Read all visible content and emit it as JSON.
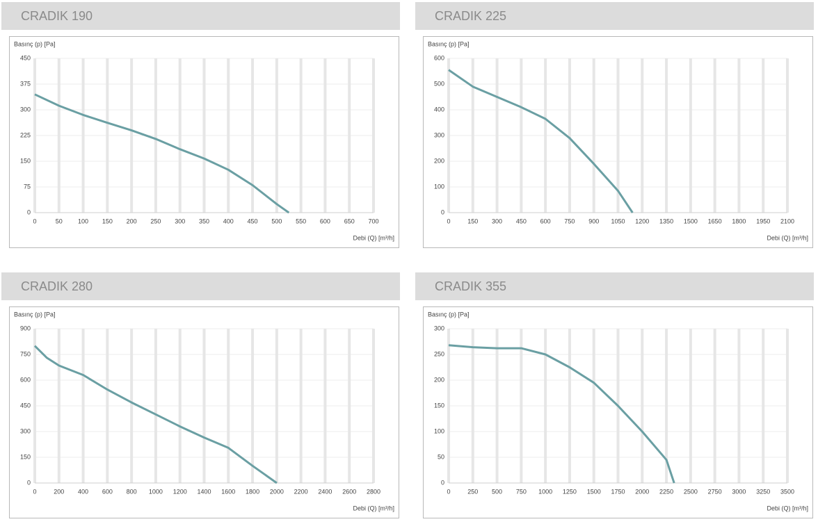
{
  "chart_data": [
    {
      "type": "line",
      "title": "CRADIK 190",
      "y_label": "Basınç (p) [Pa]",
      "x_label": "Debi (Q) [m³/h]",
      "x": [
        0,
        50,
        100,
        150,
        200,
        250,
        300,
        350,
        400,
        450,
        500,
        525
      ],
      "values": [
        345,
        312,
        285,
        262,
        240,
        215,
        185,
        158,
        125,
        80,
        25,
        0
      ],
      "color": "#6a9fa3",
      "xlim": [
        0,
        700
      ],
      "ylim": [
        0,
        450
      ],
      "xticks": [
        0,
        50,
        100,
        150,
        200,
        250,
        300,
        350,
        400,
        450,
        500,
        550,
        600,
        650,
        700
      ],
      "yticks": [
        0,
        75,
        150,
        225,
        300,
        375,
        450
      ],
      "grid": true
    },
    {
      "type": "line",
      "title": "CRADIK 225",
      "y_label": "Basınç (p) [Pa]",
      "x_label": "Debi (Q) [m³/h]",
      "x": [
        0,
        150,
        300,
        450,
        600,
        750,
        900,
        1050,
        1140
      ],
      "values": [
        555,
        490,
        450,
        410,
        365,
        290,
        190,
        85,
        0
      ],
      "color": "#6a9fa3",
      "xlim": [
        0,
        2100
      ],
      "ylim": [
        0,
        600
      ],
      "xticks": [
        0,
        150,
        300,
        450,
        600,
        750,
        900,
        1050,
        1200,
        1350,
        1500,
        1650,
        1800,
        1950,
        2100
      ],
      "yticks": [
        0,
        100,
        200,
        300,
        400,
        500,
        600
      ],
      "grid": true
    },
    {
      "type": "line",
      "title": "CRADIK 280",
      "y_label": "Basınç (p) [Pa]",
      "x_label": "Debi (Q) [m³/h]",
      "x": [
        0,
        100,
        200,
        400,
        600,
        800,
        1000,
        1200,
        1400,
        1600,
        1800,
        2000
      ],
      "values": [
        800,
        730,
        685,
        630,
        545,
        470,
        400,
        330,
        265,
        205,
        100,
        0
      ],
      "color": "#6a9fa3",
      "xlim": [
        0,
        2800
      ],
      "ylim": [
        0,
        900
      ],
      "xticks": [
        0,
        200,
        400,
        600,
        800,
        1000,
        1200,
        1400,
        1600,
        1800,
        2000,
        2200,
        2400,
        2600,
        2800
      ],
      "yticks": [
        0,
        150,
        300,
        450,
        600,
        750,
        900
      ],
      "grid": true
    },
    {
      "type": "line",
      "title": "CRADIK 355",
      "y_label": "Basınç (p) [Pa]",
      "x_label": "Debi (Q) [m³/h]",
      "x": [
        0,
        250,
        500,
        750,
        1000,
        1250,
        1500,
        1750,
        2000,
        2250,
        2330
      ],
      "values": [
        268,
        264,
        262,
        262,
        250,
        225,
        195,
        150,
        100,
        45,
        0
      ],
      "color": "#6a9fa3",
      "xlim": [
        0,
        3500
      ],
      "ylim": [
        0,
        300
      ],
      "xticks": [
        0,
        250,
        500,
        750,
        1000,
        1250,
        1500,
        1750,
        2000,
        2250,
        2500,
        2750,
        3000,
        3250,
        3500
      ],
      "yticks": [
        0,
        50,
        100,
        150,
        200,
        250,
        300
      ],
      "grid": true
    }
  ]
}
